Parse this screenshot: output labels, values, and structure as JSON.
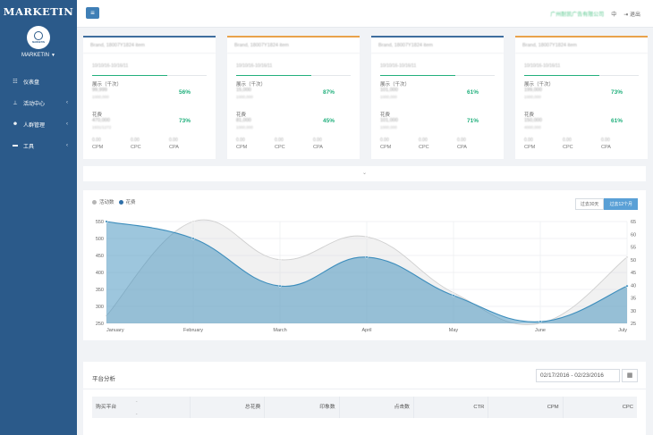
{
  "sidebar": {
    "brand": "MARKETIN",
    "logo_text": "MARKETIN",
    "user": "MARKETIN",
    "items": [
      {
        "label": "仪表盘",
        "icon": "dashboard-icon",
        "has_chevron": false
      },
      {
        "label": "活动中心",
        "icon": "sitemap-icon",
        "has_chevron": true
      },
      {
        "label": "人群管理",
        "icon": "users-icon",
        "has_chevron": true
      },
      {
        "label": "工具",
        "icon": "briefcase-icon",
        "has_chevron": true
      }
    ]
  },
  "topbar": {
    "menu_icon": "hamburger-icon",
    "company": "广州耐凯广告有限公司",
    "lang": "中",
    "logout": "退出"
  },
  "cards": [
    {
      "header": "Brand, 18007Y1824 item",
      "date": "10/10/16-10/16/11",
      "impressions_label": "展示（千次）",
      "impressions_value": "99,999",
      "impressions_sub": "1000,000",
      "impressions_pct": "56%",
      "cost_label": "花费",
      "cost_value": "470,000",
      "cost_sub": "1931/1272",
      "cost_pct": "73%",
      "mini_values": [
        "0.00",
        "0.00",
        "0.00"
      ],
      "mini_labels": [
        "CPM",
        "CPC",
        "CPA"
      ],
      "accent": "#3f6e9e"
    },
    {
      "header": "Brand, 18007Y1824 item",
      "date": "10/10/16-10/16/11",
      "impressions_label": "展示（千次）",
      "impressions_value": "15,000",
      "impressions_sub": "1000,000",
      "impressions_pct": "87%",
      "cost_label": "花费",
      "cost_value": "81,000",
      "cost_sub": "1000,000",
      "cost_pct": "45%",
      "mini_values": [
        "0.00",
        "0.00",
        "0.00"
      ],
      "mini_labels": [
        "CPM",
        "CPC",
        "CPA"
      ],
      "accent": "#e9a24b"
    },
    {
      "header": "Brand, 18007Y1824 item",
      "date": "10/10/16-10/16/11",
      "impressions_label": "展示（千次）",
      "impressions_value": "101,000",
      "impressions_sub": "1000,000",
      "impressions_pct": "61%",
      "cost_label": "花费",
      "cost_value": "101,000",
      "cost_sub": "1000,000",
      "cost_pct": "71%",
      "mini_values": [
        "0.00",
        "0.00",
        "0.00"
      ],
      "mini_labels": [
        "CPM",
        "CPC",
        "CPA"
      ],
      "accent": "#3f6e9e"
    },
    {
      "header": "Brand, 18007Y1824 item",
      "date": "10/10/16-10/16/11",
      "impressions_label": "展示（千次）",
      "impressions_value": "199,000",
      "impressions_sub": "1000,000",
      "impressions_pct": "73%",
      "cost_label": "花费",
      "cost_value": "150,000",
      "cost_sub": "4000,000",
      "cost_pct": "61%",
      "mini_values": [
        "0.00",
        "0.00",
        "0.00"
      ],
      "mini_labels": [
        "CPM",
        "CPC",
        "CPA"
      ],
      "accent": "#e9a24b"
    }
  ],
  "collapse_icon": "chevron-down-icon",
  "chart": {
    "range_buttons": [
      "过去30天",
      "过去12个月"
    ],
    "active_range": 1
  },
  "chart_data": {
    "type": "area",
    "categories": [
      "January",
      "February",
      "March",
      "April",
      "May",
      "June",
      "July"
    ],
    "series": [
      {
        "name": "活动数",
        "axis": "right",
        "values": [
          28,
          65,
          50,
          59,
          37,
          25,
          51
        ],
        "color": "#c8c8c8"
      },
      {
        "name": "花费",
        "axis": "left",
        "values": [
          550,
          500,
          360,
          445,
          332,
          255,
          360
        ],
        "color": "#3c8dbc"
      }
    ],
    "ylim_left": [
      250,
      550
    ],
    "yticks_left": [
      550,
      500,
      450,
      400,
      350,
      300,
      250
    ],
    "ylim_right": [
      25,
      65
    ],
    "yticks_right": [
      65,
      60,
      55,
      50,
      45,
      40,
      35,
      30,
      25
    ],
    "legend_position": "top-left",
    "grid": true
  },
  "table": {
    "title": "平台分析",
    "date_range": "02/17/2016 - 02/23/2016",
    "calendar_icon": "calendar-icon",
    "columns": [
      "购买平台",
      "总花费",
      "印象数",
      "点击数",
      "CTR",
      "CPM",
      "CPC"
    ]
  }
}
